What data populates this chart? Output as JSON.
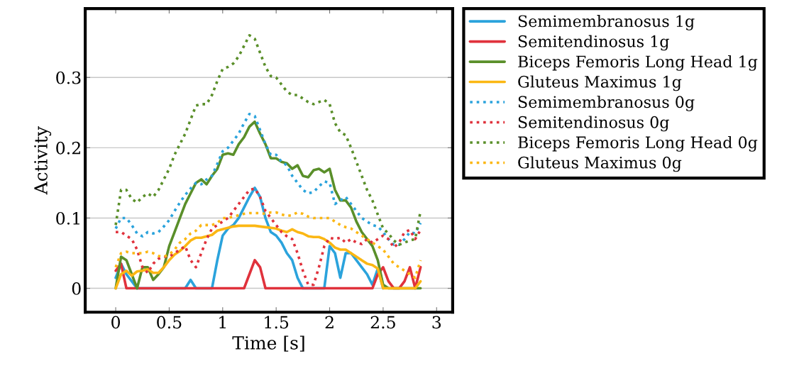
{
  "chart_data": {
    "type": "line",
    "xlabel": "Time [s]",
    "ylabel": "Activity",
    "x": [
      0,
      0.05,
      0.1,
      0.15,
      0.2,
      0.25,
      0.3,
      0.35,
      0.4,
      0.45,
      0.5,
      0.55,
      0.6,
      0.65,
      0.7,
      0.75,
      0.8,
      0.85,
      0.9,
      0.95,
      1.0,
      1.05,
      1.1,
      1.15,
      1.2,
      1.25,
      1.3,
      1.35,
      1.4,
      1.45,
      1.5,
      1.55,
      1.6,
      1.65,
      1.7,
      1.75,
      1.8,
      1.85,
      1.9,
      1.95,
      2.0,
      2.05,
      2.1,
      2.15,
      2.2,
      2.25,
      2.3,
      2.35,
      2.4,
      2.45,
      2.5,
      2.55,
      2.6,
      2.65,
      2.7,
      2.75,
      2.8,
      2.85
    ],
    "xlim": [
      -0.285,
      3.15
    ],
    "ylim": [
      -0.034,
      0.398
    ],
    "xticks": [
      0,
      0.5,
      1,
      1.5,
      2,
      2.5,
      3
    ],
    "yticks": [
      0,
      0.1,
      0.2,
      0.3
    ],
    "grid": "y",
    "legend": "right",
    "marker": "none",
    "series": [
      {
        "name": "Semimembranosus 1g",
        "color": "#2ba3dc",
        "line_style": "solid",
        "values": [
          0.015,
          0.035,
          0.02,
          0.01,
          0,
          0,
          0,
          0,
          0,
          0,
          0,
          0,
          0,
          0,
          0.012,
          0,
          0,
          0,
          0,
          0.04,
          0.075,
          0.085,
          0.09,
          0.1,
          0.115,
          0.13,
          0.143,
          0.13,
          0.1,
          0.08,
          0.075,
          0.065,
          0.05,
          0.04,
          0.015,
          0,
          0,
          0,
          0,
          0,
          0.06,
          0.05,
          0.015,
          0.05,
          0.05,
          0.04,
          0.03,
          0.02,
          0.005,
          0.028,
          0,
          null,
          null,
          null,
          null,
          null,
          null,
          null
        ]
      },
      {
        "name": "Semitendinosus 1g",
        "color": "#e0323c",
        "line_style": "solid",
        "values": [
          0.025,
          0.035,
          0,
          0,
          0,
          0,
          0,
          0,
          0,
          0,
          0,
          0,
          0,
          0,
          0,
          0,
          0,
          0,
          0,
          0,
          0,
          0,
          0,
          0,
          0,
          0.02,
          0.04,
          0.03,
          0,
          0,
          0,
          0,
          0,
          0,
          0,
          0,
          0,
          0,
          0,
          0,
          0,
          0,
          0,
          0,
          0,
          0,
          0,
          0,
          0,
          0.02,
          0.03,
          0.01,
          0,
          0,
          0.01,
          0.03,
          0,
          0.03
        ]
      },
      {
        "name": "Biceps Femoris Long Head 1g",
        "color": "#5a8f2a",
        "line_style": "solid",
        "values": [
          0,
          0.045,
          0.04,
          0.02,
          0,
          0.03,
          0.03,
          0.012,
          0.02,
          0.03,
          0.06,
          0.08,
          0.1,
          0.12,
          0.135,
          0.15,
          0.155,
          0.148,
          0.16,
          0.17,
          0.19,
          0.192,
          0.19,
          0.205,
          0.215,
          0.23,
          0.237,
          0.22,
          0.205,
          0.185,
          0.185,
          0.18,
          0.178,
          0.17,
          0.175,
          0.16,
          0.158,
          0.168,
          0.17,
          0.165,
          0.17,
          0.14,
          0.125,
          0.125,
          0.115,
          0.095,
          0.08,
          0.07,
          0.06,
          0.04,
          0.005,
          0,
          0,
          0,
          0,
          0,
          0,
          0
        ]
      },
      {
        "name": "Gluteus Maximus 1g",
        "color": "#fbb714",
        "line_style": "solid",
        "values": [
          0,
          0.02,
          0.025,
          0.018,
          0.024,
          0.025,
          0.027,
          0.022,
          0.022,
          0.03,
          0.04,
          0.048,
          0.053,
          0.06,
          0.068,
          0.072,
          0.072,
          0.074,
          0.076,
          0.082,
          0.084,
          0.086,
          0.088,
          0.089,
          0.089,
          0.089,
          0.089,
          0.088,
          0.087,
          0.086,
          0.085,
          0.082,
          0.08,
          0.084,
          0.08,
          0.078,
          0.074,
          0.073,
          0.073,
          0.07,
          0.065,
          0.058,
          0.055,
          0.055,
          0.05,
          0.045,
          0.04,
          0.035,
          0.033,
          0.028,
          0,
          0,
          0,
          0,
          0,
          0,
          0,
          0.01
        ]
      },
      {
        "name": "Semimembranosus 0g",
        "color": "#2ba3dc",
        "line_style": "dotted",
        "values": [
          0.085,
          0.1,
          0.1,
          0.09,
          0.078,
          0.074,
          0.08,
          0.078,
          0.08,
          0.088,
          0.097,
          0.11,
          0.122,
          0.133,
          0.142,
          0.15,
          0.148,
          0.155,
          0.16,
          0.177,
          0.195,
          0.2,
          0.21,
          0.22,
          0.235,
          0.248,
          0.245,
          0.225,
          0.205,
          0.19,
          0.19,
          0.18,
          0.175,
          0.16,
          0.15,
          0.14,
          0.135,
          0.137,
          0.145,
          0.152,
          0.15,
          0.12,
          0.125,
          0.13,
          0.12,
          0.11,
          0.1,
          0.095,
          0.09,
          0.088,
          0.08,
          0.07,
          0.062,
          0.062,
          0.07,
          0.08,
          0.078,
          0.093
        ]
      },
      {
        "name": "Semitendinosus 0g",
        "color": "#e0323c",
        "line_style": "dotted",
        "values": [
          0.08,
          0.08,
          0.075,
          0.07,
          0.055,
          0.03,
          0.022,
          0.035,
          0.042,
          0.045,
          0.045,
          0.05,
          0.055,
          0.06,
          0.04,
          0.03,
          0.05,
          0.07,
          0.085,
          0.09,
          0.095,
          0.1,
          0.11,
          0.12,
          0.13,
          0.14,
          0.142,
          0.13,
          0.11,
          0.1,
          0.09,
          0.08,
          0.074,
          0.07,
          0.05,
          0.025,
          0.005,
          0.005,
          0.03,
          0.06,
          0.072,
          0.07,
          0.072,
          0.065,
          0.07,
          0.065,
          0.063,
          0.07,
          0.065,
          0.07,
          0.075,
          0.07,
          0.058,
          0.065,
          0.08,
          0.083,
          0.07,
          0.083
        ]
      },
      {
        "name": "Biceps Femoris Long Head 0g",
        "color": "#5a8f2a",
        "line_style": "dotted",
        "values": [
          0.09,
          0.14,
          0.14,
          0.127,
          0.122,
          0.13,
          0.135,
          0.13,
          0.14,
          0.155,
          0.17,
          0.19,
          0.205,
          0.22,
          0.24,
          0.26,
          0.262,
          0.262,
          0.275,
          0.295,
          0.312,
          0.315,
          0.32,
          0.33,
          0.345,
          0.36,
          0.355,
          0.335,
          0.315,
          0.302,
          0.3,
          0.29,
          0.28,
          0.275,
          0.275,
          0.27,
          0.265,
          0.262,
          0.265,
          0.268,
          0.262,
          0.235,
          0.222,
          0.218,
          0.2,
          0.18,
          0.16,
          0.14,
          0.125,
          0.105,
          0.085,
          0.078,
          0.068,
          0.062,
          0.065,
          0.068,
          0.07,
          0.11
        ]
      },
      {
        "name": "Gluteus Maximus 0g",
        "color": "#fbb714",
        "line_style": "dotted",
        "values": [
          0.03,
          0.05,
          0.052,
          0.05,
          0.05,
          0.05,
          0.052,
          0.05,
          0.046,
          0.045,
          0.048,
          0.055,
          0.065,
          0.07,
          0.078,
          0.082,
          0.09,
          0.09,
          0.09,
          0.093,
          0.1,
          0.1,
          0.102,
          0.104,
          0.106,
          0.107,
          0.107,
          0.107,
          0.106,
          0.108,
          0.108,
          0.105,
          0.103,
          0.104,
          0.108,
          0.106,
          0.102,
          0.1,
          0.1,
          0.1,
          0.1,
          0.095,
          0.09,
          0.087,
          0.085,
          0.08,
          0.075,
          0.07,
          0.065,
          0.06,
          0.055,
          0.045,
          0.035,
          0.03,
          0.025,
          0.02,
          0.015,
          0.04
        ]
      }
    ]
  }
}
